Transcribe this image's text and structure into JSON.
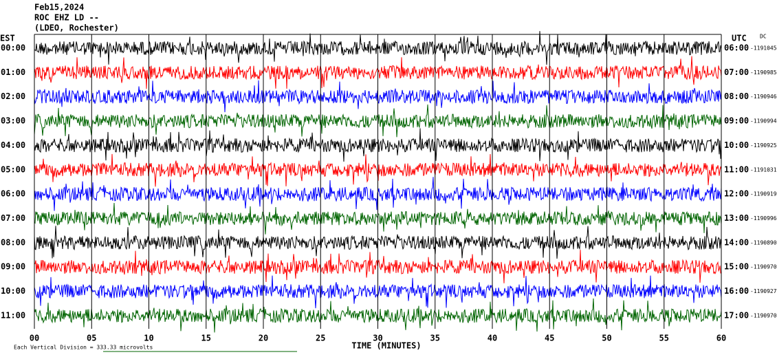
{
  "chart_data": {
    "type": "helicorder",
    "title_lines": [
      "Feb15,2024",
      "ROC EHZ LD --",
      "(LDEO, Rochester)"
    ],
    "left_axis_label": "EST",
    "right_axis_label": "UTC",
    "dc_label": "DC",
    "xlabel": "TIME (MINUTES)",
    "footer": "Each Vertical Division = 333.33 microvolts",
    "xlim": [
      0,
      60
    ],
    "xticks": [
      {
        "value": 0,
        "label": "00"
      },
      {
        "value": 5,
        "label": "05"
      },
      10,
      15,
      20,
      25,
      30,
      35,
      40,
      45,
      50,
      55,
      60
    ],
    "rows": [
      {
        "est": "00:00",
        "utc": "06:00",
        "dc": -1191045,
        "color": "#000000"
      },
      {
        "est": "01:00",
        "utc": "07:00",
        "dc": -1190985,
        "color": "#ff0000"
      },
      {
        "est": "02:00",
        "utc": "08:00",
        "dc": -1190946,
        "color": "#0000ff"
      },
      {
        "est": "03:00",
        "utc": "09:00",
        "dc": -1190994,
        "color": "#006400"
      },
      {
        "est": "04:00",
        "utc": "10:00",
        "dc": -1190925,
        "color": "#000000"
      },
      {
        "est": "05:00",
        "utc": "11:00",
        "dc": -1191031,
        "color": "#ff0000"
      },
      {
        "est": "06:00",
        "utc": "12:00",
        "dc": -1190919,
        "color": "#0000ff"
      },
      {
        "est": "07:00",
        "utc": "13:00",
        "dc": -1190996,
        "color": "#006400"
      },
      {
        "est": "08:00",
        "utc": "14:00",
        "dc": -1190890,
        "color": "#000000"
      },
      {
        "est": "09:00",
        "utc": "15:00",
        "dc": -1190970,
        "color": "#ff0000"
      },
      {
        "est": "10:00",
        "utc": "16:00",
        "dc": -1190927,
        "color": "#0000ff"
      },
      {
        "est": "11:00",
        "utc": "17:00",
        "dc": -1190970,
        "color": "#006400"
      }
    ]
  }
}
